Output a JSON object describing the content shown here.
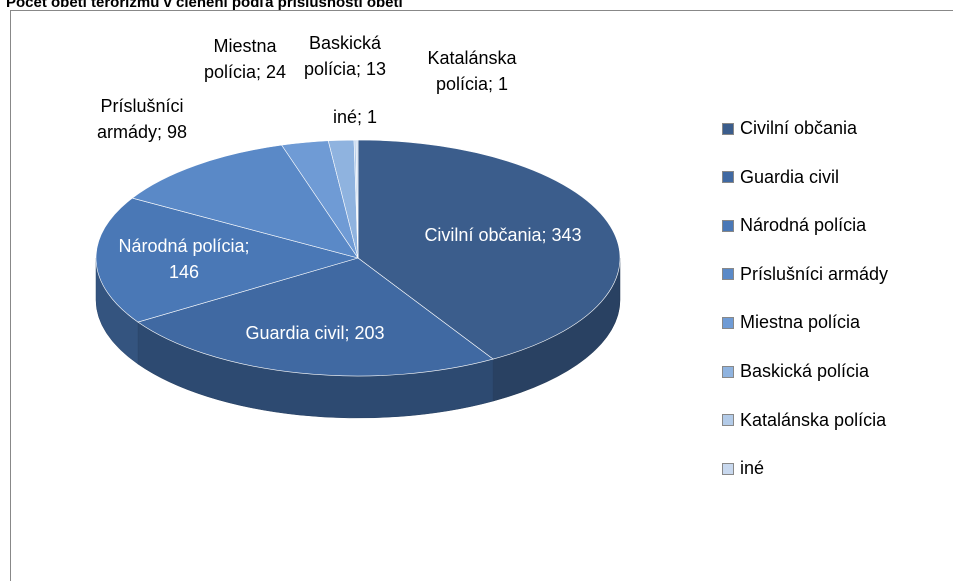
{
  "chart_data": {
    "type": "pie",
    "title": "Počet obetí terorizmu v členení podľa príslušnosti obetí",
    "categories": [
      "Civilní občania",
      "Guardia civil",
      "Národná polícia",
      "Príslušníci armády",
      "Miestna polícia",
      "Baskická polícia",
      "Katalánska polícia",
      "iné"
    ],
    "values": [
      343,
      203,
      146,
      98,
      24,
      13,
      1,
      1
    ],
    "value_labels": [
      "Civilní občania; 343",
      "Guardia civil; 203",
      "Národná polícia; 146",
      "Príslušníci armády; 98",
      "Miestna polícia; 24",
      "Baskická polícia; 13",
      "Katalánska polícia; 1",
      "iné; 1"
    ],
    "colors": [
      "#3b5d8c",
      "#4069a2",
      "#4a78b6",
      "#5a89c7",
      "#6f9bd5",
      "#8fb3df",
      "#b3cbe8",
      "#c8d8ee"
    ],
    "legend": "right"
  }
}
